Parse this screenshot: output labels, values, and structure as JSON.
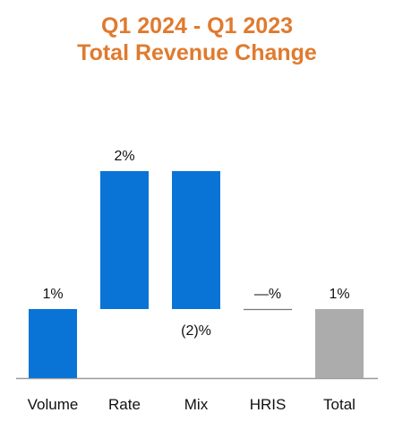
{
  "chart_data": {
    "type": "bar",
    "subtype": "waterfall",
    "title_line1": "Q1 2024 - Q1 2023",
    "title_line2": "Total Revenue Change",
    "categories": [
      "Volume",
      "Rate",
      "Mix",
      "HRIS",
      "Total"
    ],
    "values": [
      1,
      2,
      -2,
      0,
      1
    ],
    "data_labels": [
      "1%",
      "2%",
      "(2)%",
      "—%",
      "1%"
    ],
    "ylim": [
      0,
      3.3
    ],
    "grid": false,
    "legend": "none",
    "colors": {
      "step": "#0a73d6",
      "total": "#acacac",
      "title": "#e07a2e",
      "axis": "#999999"
    }
  }
}
